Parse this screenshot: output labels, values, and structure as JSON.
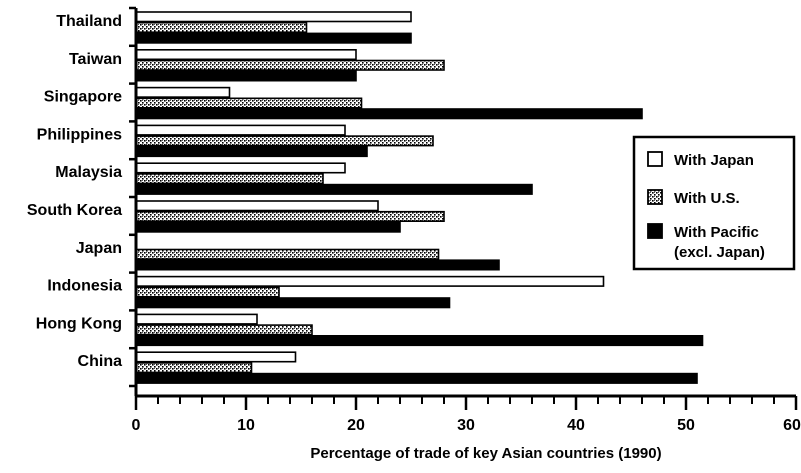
{
  "chart_data": {
    "type": "bar",
    "orientation": "horizontal",
    "categories": [
      "Thailand",
      "Taiwan",
      "Singapore",
      "Philippines",
      "Malaysia",
      "South Korea",
      "Japan",
      "Indonesia",
      "Hong Kong",
      "China"
    ],
    "series": [
      {
        "name": "With Japan",
        "values": [
          25,
          20,
          8.5,
          19,
          19,
          22,
          0,
          42.5,
          11,
          14.5
        ],
        "fill": "white"
      },
      {
        "name": "With U.S.",
        "values": [
          15.5,
          28,
          20.5,
          27,
          17,
          28,
          27.5,
          13,
          16,
          10.5
        ],
        "fill": "stipple"
      },
      {
        "name": "With Pacific\n(excl. Japan)",
        "values": [
          25,
          20,
          46,
          21,
          36,
          24,
          33,
          28.5,
          51.5,
          51
        ],
        "fill": "black"
      }
    ],
    "xlabel": "Percentage of trade of key Asian countries (1990)",
    "ylabel": "",
    "xlim": [
      0,
      60
    ],
    "xticks": [
      0,
      10,
      20,
      30,
      40,
      50,
      60
    ],
    "legend_position": "right",
    "grid": false
  },
  "colors": {
    "ink": "#000000",
    "paper": "#ffffff"
  }
}
